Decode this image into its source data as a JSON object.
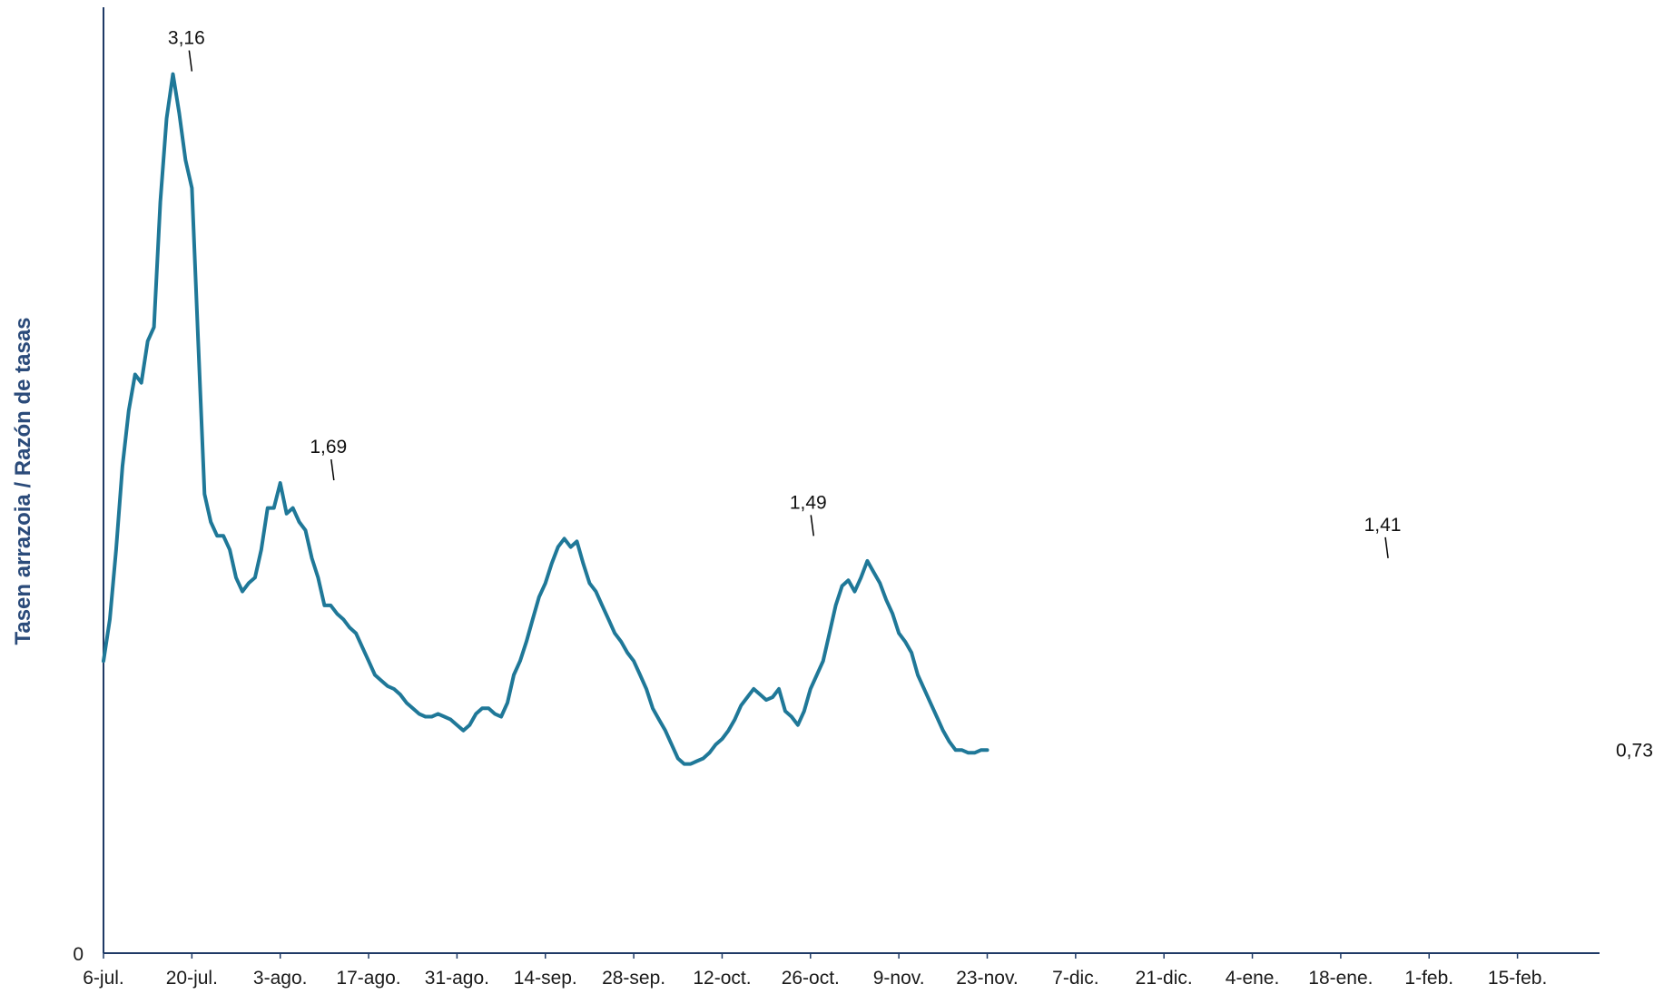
{
  "chart_data": {
    "type": "line",
    "ylabel": "Tasen arrazoia / Razón de tasas",
    "xlabel": "",
    "y_tick_labels": [
      "0"
    ],
    "ylim": [
      0,
      3.4
    ],
    "x_range_days": [
      0,
      237
    ],
    "grid": false,
    "legend": "none",
    "colors": {
      "line": "#1f7898",
      "axis": "#1f3a66",
      "leader": "#000000"
    },
    "x_ticks": [
      {
        "label": "6-jul.",
        "day": 0
      },
      {
        "label": "20-jul.",
        "day": 14
      },
      {
        "label": "3-ago.",
        "day": 28
      },
      {
        "label": "17-ago.",
        "day": 42
      },
      {
        "label": "31-ago.",
        "day": 56
      },
      {
        "label": "14-sep.",
        "day": 70
      },
      {
        "label": "28-sep.",
        "day": 84
      },
      {
        "label": "12-oct.",
        "day": 98
      },
      {
        "label": "26-oct.",
        "day": 112
      },
      {
        "label": "9-nov.",
        "day": 126
      },
      {
        "label": "23-nov.",
        "day": 140
      },
      {
        "label": "7-dic.",
        "day": 154
      },
      {
        "label": "21-dic.",
        "day": 168
      },
      {
        "label": "4-ene.",
        "day": 182
      },
      {
        "label": "18-ene.",
        "day": 196
      },
      {
        "label": "1-feb.",
        "day": 210
      },
      {
        "label": "15-feb.",
        "day": 224
      }
    ],
    "series": [
      {
        "values": [
          [
            0,
            1.05
          ],
          [
            1,
            1.2
          ],
          [
            2,
            1.45
          ],
          [
            3,
            1.75
          ],
          [
            4,
            1.95
          ],
          [
            5,
            2.08
          ],
          [
            6,
            2.05
          ],
          [
            7,
            2.2
          ],
          [
            8,
            2.25
          ],
          [
            9,
            2.7
          ],
          [
            10,
            3.0
          ],
          [
            11,
            3.16
          ],
          [
            12,
            3.02
          ],
          [
            13,
            2.85
          ],
          [
            14,
            2.75
          ],
          [
            15,
            2.2
          ],
          [
            16,
            1.65
          ],
          [
            17,
            1.55
          ],
          [
            18,
            1.5
          ],
          [
            19,
            1.5
          ],
          [
            20,
            1.45
          ],
          [
            21,
            1.35
          ],
          [
            22,
            1.3
          ],
          [
            23,
            1.33
          ],
          [
            24,
            1.35
          ],
          [
            25,
            1.45
          ],
          [
            26,
            1.6
          ],
          [
            27,
            1.6
          ],
          [
            28,
            1.69
          ],
          [
            29,
            1.58
          ],
          [
            30,
            1.6
          ],
          [
            31,
            1.55
          ],
          [
            32,
            1.52
          ],
          [
            33,
            1.42
          ],
          [
            34,
            1.35
          ],
          [
            35,
            1.25
          ],
          [
            36,
            1.25
          ],
          [
            37,
            1.22
          ],
          [
            38,
            1.2
          ],
          [
            39,
            1.17
          ],
          [
            40,
            1.15
          ],
          [
            41,
            1.1
          ],
          [
            42,
            1.05
          ],
          [
            43,
            1.0
          ],
          [
            44,
            0.98
          ],
          [
            45,
            0.96
          ],
          [
            46,
            0.95
          ],
          [
            47,
            0.93
          ],
          [
            48,
            0.9
          ],
          [
            49,
            0.88
          ],
          [
            50,
            0.86
          ],
          [
            51,
            0.85
          ],
          [
            52,
            0.85
          ],
          [
            53,
            0.86
          ],
          [
            54,
            0.85
          ],
          [
            55,
            0.84
          ],
          [
            56,
            0.82
          ],
          [
            57,
            0.8
          ],
          [
            58,
            0.82
          ],
          [
            59,
            0.86
          ],
          [
            60,
            0.88
          ],
          [
            61,
            0.88
          ],
          [
            62,
            0.86
          ],
          [
            63,
            0.85
          ],
          [
            64,
            0.9
          ],
          [
            65,
            1.0
          ],
          [
            66,
            1.05
          ],
          [
            67,
            1.12
          ],
          [
            68,
            1.2
          ],
          [
            69,
            1.28
          ],
          [
            70,
            1.33
          ],
          [
            71,
            1.4
          ],
          [
            72,
            1.46
          ],
          [
            73,
            1.49
          ],
          [
            74,
            1.46
          ],
          [
            75,
            1.48
          ],
          [
            76,
            1.4
          ],
          [
            77,
            1.33
          ],
          [
            78,
            1.3
          ],
          [
            79,
            1.25
          ],
          [
            80,
            1.2
          ],
          [
            81,
            1.15
          ],
          [
            82,
            1.12
          ],
          [
            83,
            1.08
          ],
          [
            84,
            1.05
          ],
          [
            85,
            1.0
          ],
          [
            86,
            0.95
          ],
          [
            87,
            0.88
          ],
          [
            88,
            0.84
          ],
          [
            89,
            0.8
          ],
          [
            90,
            0.75
          ],
          [
            91,
            0.7
          ],
          [
            92,
            0.68
          ],
          [
            93,
            0.68
          ],
          [
            94,
            0.69
          ],
          [
            95,
            0.7
          ],
          [
            96,
            0.72
          ],
          [
            97,
            0.75
          ],
          [
            98,
            0.77
          ],
          [
            99,
            0.8
          ],
          [
            100,
            0.84
          ],
          [
            101,
            0.89
          ],
          [
            102,
            0.92
          ],
          [
            103,
            0.95
          ],
          [
            104,
            0.93
          ],
          [
            105,
            0.91
          ],
          [
            106,
            0.92
          ],
          [
            107,
            0.95
          ],
          [
            108,
            0.87
          ],
          [
            109,
            0.85
          ],
          [
            110,
            0.82
          ],
          [
            111,
            0.87
          ],
          [
            112,
            0.95
          ],
          [
            113,
            1.0
          ],
          [
            114,
            1.05
          ],
          [
            115,
            1.15
          ],
          [
            116,
            1.25
          ],
          [
            117,
            1.32
          ],
          [
            118,
            1.34
          ],
          [
            119,
            1.3
          ],
          [
            120,
            1.35
          ],
          [
            121,
            1.41
          ],
          [
            122,
            1.37
          ],
          [
            123,
            1.33
          ],
          [
            124,
            1.27
          ],
          [
            125,
            1.22
          ],
          [
            126,
            1.15
          ],
          [
            127,
            1.12
          ],
          [
            128,
            1.08
          ],
          [
            129,
            1.0
          ],
          [
            130,
            0.95
          ],
          [
            131,
            0.9
          ],
          [
            132,
            0.85
          ],
          [
            133,
            0.8
          ],
          [
            134,
            0.76
          ],
          [
            135,
            0.73
          ],
          [
            136,
            0.73
          ],
          [
            137,
            0.72
          ],
          [
            138,
            0.72
          ],
          [
            139,
            0.73
          ],
          [
            140,
            0.73
          ]
        ]
      }
    ],
    "annotations": [
      {
        "text": "3,16",
        "day": 14,
        "y": 3.16
      },
      {
        "text": "1,69",
        "day": 36.5,
        "y": 1.69
      },
      {
        "text": "1,49",
        "day": 112.5,
        "y": 1.49
      },
      {
        "text": "1,41",
        "day": 203.5,
        "y": 1.41
      },
      {
        "text": "0,73",
        "day": 237,
        "y": 0.73
      }
    ]
  }
}
